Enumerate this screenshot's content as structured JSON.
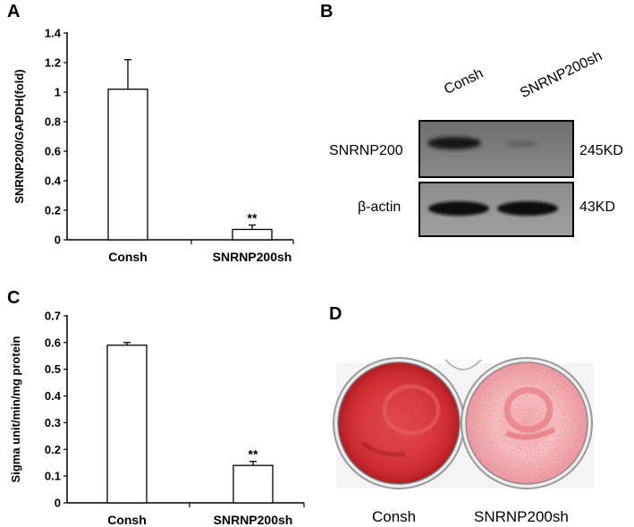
{
  "panels": {
    "a": "A",
    "b": "B",
    "c": "C",
    "d": "D"
  },
  "chart_data": [
    {
      "type": "bar",
      "panel": "A",
      "categories": [
        "Consh",
        "SNRNP200sh"
      ],
      "values": [
        1.02,
        0.07
      ],
      "errors": [
        0.2,
        0.03
      ],
      "significance": [
        "",
        "**"
      ],
      "ylabel": "SNRNP200/GAPDH(fold)",
      "xlabel": "",
      "ylim": [
        0,
        1.4
      ],
      "yticks": [
        "0",
        "0.2",
        "0.4",
        "0.6",
        "0.8",
        "1",
        "1.2",
        "1.4"
      ],
      "grid": false
    },
    {
      "type": "bar",
      "panel": "C",
      "categories": [
        "Consh",
        "SNRNP200sh"
      ],
      "values": [
        0.59,
        0.14
      ],
      "errors": [
        0.01,
        0.015
      ],
      "significance": [
        "",
        "**"
      ],
      "ylabel": "Sigma unit/min/mg protein",
      "xlabel": "",
      "ylim": [
        0,
        0.7
      ],
      "yticks": [
        "0",
        "0.1",
        "0.2",
        "0.3",
        "0.4",
        "0.5",
        "0.6",
        "0.7"
      ],
      "grid": false
    }
  ],
  "blot": {
    "lanes": [
      "Consh",
      "SNRNP200sh"
    ],
    "rows": [
      {
        "protein": "SNRNP200",
        "size": "245KD"
      },
      {
        "protein": "β-actin",
        "size": "43KD"
      }
    ]
  },
  "plates": {
    "labels": [
      "Consh",
      "SNRNP200sh"
    ]
  }
}
